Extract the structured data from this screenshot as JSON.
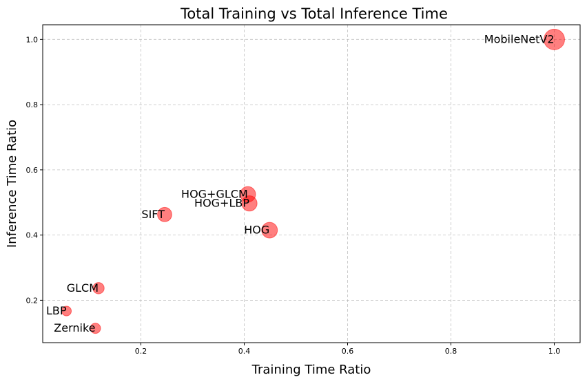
{
  "chart_data": {
    "type": "scatter",
    "title": "Total Training vs Total Inference Time",
    "xlabel": "Training Time Ratio",
    "ylabel": "Inference Time Ratio",
    "xlim": [
      0.01,
      1.05
    ],
    "ylim": [
      0.07,
      1.045
    ],
    "x_ticks": [
      0.2,
      0.4,
      0.6,
      0.8,
      1.0
    ],
    "y_ticks": [
      0.2,
      0.4,
      0.6,
      0.8,
      1.0
    ],
    "x_tick_labels": [
      "0.2",
      "0.4",
      "0.6",
      "0.8",
      "1.0"
    ],
    "y_tick_labels": [
      "0.2",
      "0.4",
      "0.6",
      "0.8",
      "1.0"
    ],
    "grid": true,
    "marker_color": "#ff0000",
    "points": [
      {
        "label": "MobileNetV2",
        "x": 1.0,
        "y": 1.0,
        "size_rel": 1.0
      },
      {
        "label": "HOG+GLCM",
        "x": 0.407,
        "y": 0.525,
        "size_rel": 0.56
      },
      {
        "label": "HOG+LBP",
        "x": 0.41,
        "y": 0.497,
        "size_rel": 0.55
      },
      {
        "label": "SIFT",
        "x": 0.246,
        "y": 0.463,
        "size_rel": 0.48
      },
      {
        "label": "HOG",
        "x": 0.449,
        "y": 0.415,
        "size_rel": 0.58
      },
      {
        "label": "GLCM",
        "x": 0.118,
        "y": 0.237,
        "size_rel": 0.3
      },
      {
        "label": "LBP",
        "x": 0.056,
        "y": 0.167,
        "size_rel": 0.22
      },
      {
        "label": "Zernike",
        "x": 0.112,
        "y": 0.114,
        "size_rel": 0.25
      }
    ]
  }
}
